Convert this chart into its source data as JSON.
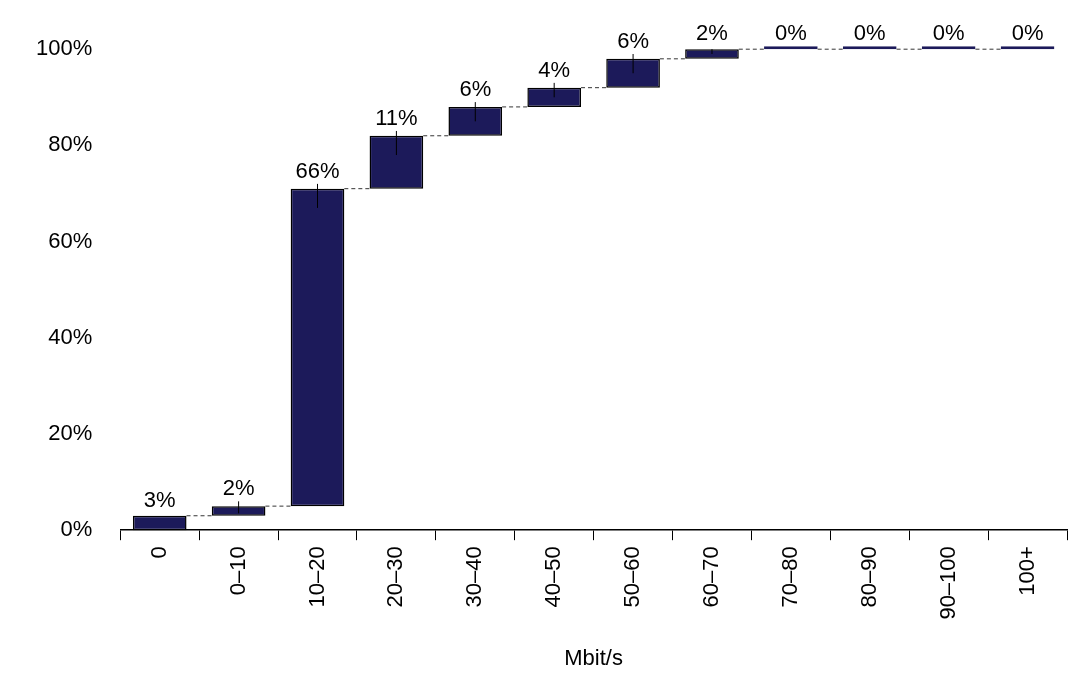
{
  "chart_data": {
    "type": "bar",
    "xlabel": "Mbit/s",
    "categories": [
      "0",
      "0–10",
      "10–20",
      "20–30",
      "30–40",
      "40–50",
      "50–60",
      "60–70",
      "70–80",
      "80–90",
      "90–100",
      "100+"
    ],
    "base": [
      0,
      3,
      5,
      71,
      82,
      88,
      92,
      98,
      100,
      100,
      100,
      100
    ],
    "values": [
      3,
      2,
      66,
      11,
      6,
      4,
      6,
      2,
      0,
      0,
      0,
      0
    ],
    "value_labels": [
      "3%",
      "2%",
      "66%",
      "11%",
      "6%",
      "4%",
      "6%",
      "2%",
      "0%",
      "0%",
      "0%",
      "0%"
    ],
    "errors": [
      null,
      [
        3.5,
        6
      ],
      [
        67,
        72
      ],
      [
        78,
        83
      ],
      [
        85,
        89
      ],
      [
        90,
        93
      ],
      [
        95,
        99
      ],
      [
        99,
        100
      ],
      null,
      null,
      null,
      null
    ],
    "color": "#1c1a5a",
    "ylim": [
      0,
      100
    ],
    "yticks": [
      {
        "value": 0,
        "label": "0%"
      },
      {
        "value": 20,
        "label": "20%"
      },
      {
        "value": 40,
        "label": "40%"
      },
      {
        "value": 60,
        "label": "60%"
      },
      {
        "value": 80,
        "label": "80%"
      },
      {
        "value": 100,
        "label": "100%"
      }
    ],
    "grid": false,
    "legend": false
  }
}
